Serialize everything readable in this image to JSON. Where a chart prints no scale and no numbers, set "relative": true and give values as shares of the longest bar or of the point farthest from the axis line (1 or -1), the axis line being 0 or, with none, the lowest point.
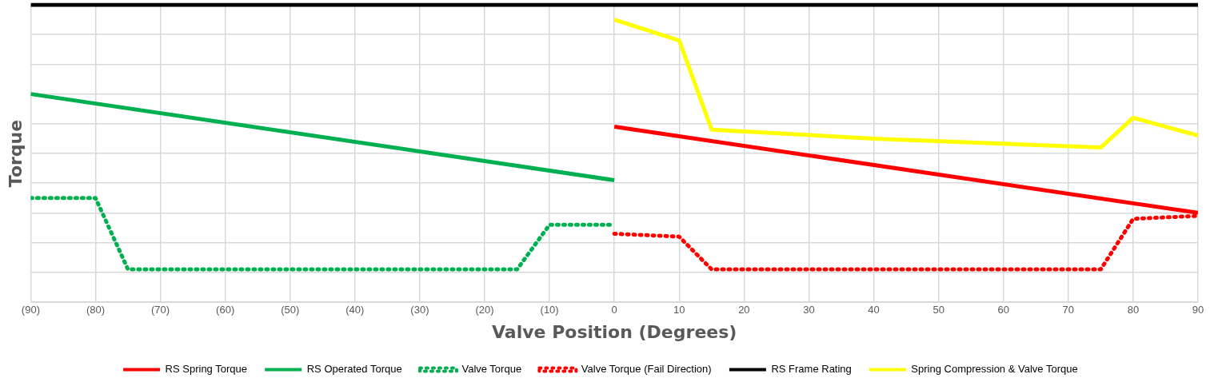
{
  "chart_data": {
    "type": "line",
    "relative": true,
    "xlabel": "Valve Position (Degrees)",
    "ylabel": "Torque",
    "xlim": [
      -90,
      90
    ],
    "xticks": [
      {
        "value": -90,
        "label": "(90)"
      },
      {
        "value": -80,
        "label": "(80)"
      },
      {
        "value": -70,
        "label": "(70)"
      },
      {
        "value": -60,
        "label": "(60)"
      },
      {
        "value": -50,
        "label": "(50)"
      },
      {
        "value": -40,
        "label": "(40)"
      },
      {
        "value": -30,
        "label": "(30)"
      },
      {
        "value": -20,
        "label": "(20)"
      },
      {
        "value": -10,
        "label": "(10)"
      },
      0,
      10,
      20,
      30,
      40,
      50,
      60,
      70,
      80,
      90
    ],
    "grid": true,
    "legend": "bottom",
    "marker": "none",
    "series": [
      {
        "name": "RS Spring Torque",
        "color": "#ff0000",
        "x": [
          0,
          90
        ],
        "values": [
          0.59,
          0.3
        ]
      },
      {
        "name": "RS Operated Torque",
        "color": "#00b050",
        "x": [
          -90,
          0
        ],
        "values": [
          0.7,
          0.41
        ]
      },
      {
        "name": "Valve Torque",
        "color": "#00b050",
        "line_style": "dotted",
        "x": [
          -90,
          -80,
          -75,
          -15,
          -10,
          0
        ],
        "values": [
          0.35,
          0.35,
          0.11,
          0.11,
          0.26,
          0.26
        ]
      },
      {
        "name": "Valve Torque (Fail Direction)",
        "color": "#ff0000",
        "line_style": "dotted",
        "x": [
          0,
          10,
          15,
          75,
          80,
          90
        ],
        "values": [
          0.23,
          0.22,
          0.11,
          0.11,
          0.28,
          0.29
        ]
      },
      {
        "name": "RS Frame Rating",
        "color": "#000000",
        "x": [
          -90,
          90
        ],
        "values": [
          1,
          1
        ]
      },
      {
        "name": "Spring Compression & Valve Torque",
        "color": "#ffff00",
        "x": [
          0,
          10,
          15,
          40,
          75,
          80,
          90
        ],
        "values": [
          0.95,
          0.88,
          0.58,
          0.55,
          0.52,
          0.62,
          0.56
        ]
      }
    ]
  }
}
